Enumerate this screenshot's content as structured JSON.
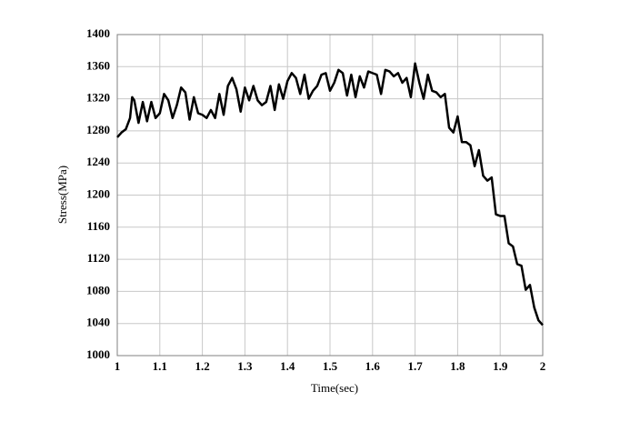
{
  "chart_data": {
    "type": "line",
    "x_label": "Time(sec)",
    "y_label": "Stress(MPa)",
    "x": [
      1.0,
      1.01,
      1.02,
      1.03,
      1.035,
      1.04,
      1.05,
      1.06,
      1.07,
      1.08,
      1.09,
      1.1,
      1.11,
      1.12,
      1.13,
      1.14,
      1.15,
      1.16,
      1.17,
      1.18,
      1.19,
      1.2,
      1.21,
      1.22,
      1.23,
      1.24,
      1.25,
      1.26,
      1.27,
      1.28,
      1.29,
      1.3,
      1.31,
      1.32,
      1.33,
      1.34,
      1.35,
      1.36,
      1.37,
      1.38,
      1.39,
      1.4,
      1.41,
      1.42,
      1.43,
      1.44,
      1.45,
      1.46,
      1.47,
      1.48,
      1.49,
      1.5,
      1.51,
      1.52,
      1.53,
      1.54,
      1.55,
      1.56,
      1.57,
      1.58,
      1.59,
      1.6,
      1.61,
      1.62,
      1.63,
      1.64,
      1.65,
      1.66,
      1.67,
      1.68,
      1.69,
      1.7,
      1.71,
      1.72,
      1.73,
      1.74,
      1.75,
      1.76,
      1.77,
      1.78,
      1.79,
      1.8,
      1.81,
      1.82,
      1.83,
      1.84,
      1.85,
      1.86,
      1.87,
      1.88,
      1.89,
      1.9,
      1.91,
      1.92,
      1.93,
      1.94,
      1.95,
      1.96,
      1.97,
      1.98,
      1.99,
      2.0
    ],
    "series": [
      {
        "color": "#000000",
        "values": [
          1272,
          1278,
          1282,
          1296,
          1322,
          1318,
          1290,
          1316,
          1292,
          1316,
          1296,
          1302,
          1326,
          1318,
          1296,
          1312,
          1334,
          1328,
          1294,
          1322,
          1302,
          1300,
          1296,
          1306,
          1296,
          1326,
          1300,
          1336,
          1346,
          1332,
          1304,
          1334,
          1318,
          1336,
          1318,
          1312,
          1316,
          1336,
          1306,
          1338,
          1320,
          1342,
          1352,
          1346,
          1326,
          1350,
          1320,
          1330,
          1336,
          1350,
          1352,
          1330,
          1340,
          1356,
          1352,
          1324,
          1350,
          1322,
          1348,
          1334,
          1354,
          1352,
          1350,
          1326,
          1356,
          1354,
          1348,
          1352,
          1340,
          1346,
          1322,
          1364,
          1340,
          1320,
          1350,
          1330,
          1328,
          1322,
          1326,
          1284,
          1278,
          1298,
          1266,
          1266,
          1262,
          1236,
          1256,
          1224,
          1218,
          1222,
          1176,
          1174,
          1174,
          1140,
          1136,
          1114,
          1112,
          1082,
          1088,
          1060,
          1044,
          1038
        ]
      }
    ],
    "xlim": [
      1,
      2
    ],
    "xticks": [
      1,
      1.1,
      1.2,
      1.3,
      1.4,
      1.5,
      1.6,
      1.7,
      1.8,
      1.9,
      2
    ],
    "ylim": [
      1000,
      1400
    ],
    "yticks": [
      1000,
      1040,
      1080,
      1120,
      1160,
      1200,
      1240,
      1280,
      1320,
      1360,
      1400
    ],
    "grid": true
  }
}
